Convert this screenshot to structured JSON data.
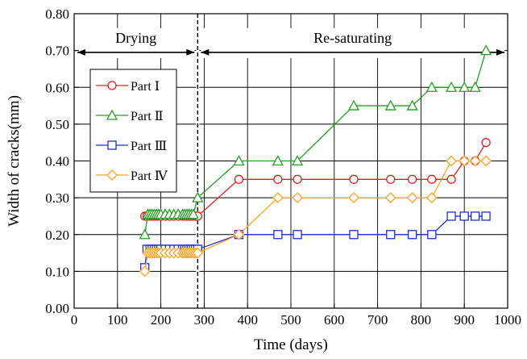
{
  "chart_data": {
    "type": "line",
    "xlabel": "Time (days)",
    "ylabel": "Width of cracks(mm)",
    "xlim": [
      0,
      1000
    ],
    "ylim": [
      0.0,
      0.8
    ],
    "x_ticks": [
      "0",
      "100",
      "200",
      "300",
      "400",
      "500",
      "600",
      "700",
      "800",
      "900",
      "1000"
    ],
    "y_ticks": [
      "0.00",
      "0.10",
      "0.20",
      "0.30",
      "0.40",
      "0.50",
      "0.60",
      "0.70",
      "0.80"
    ],
    "grid": true,
    "legend_position": "upper-left",
    "phase_divider_x": 285,
    "phases": [
      {
        "label": "Drying",
        "x_start": 0,
        "x_end": 285,
        "y": 0.695
      },
      {
        "label": "Re-saturating",
        "x_start": 285,
        "x_end": 1000,
        "y": 0.695
      }
    ],
    "series": [
      {
        "name": "Part Ⅰ",
        "color": "#e02020",
        "marker": "circle",
        "x": [
          163,
          168,
          175,
          180,
          185,
          190,
          195,
          200,
          210,
          220,
          230,
          240,
          250,
          255,
          260,
          265,
          270,
          275,
          280,
          285,
          380,
          470,
          515,
          645,
          730,
          780,
          825,
          870,
          900,
          925,
          950
        ],
        "y": [
          0.25,
          0.25,
          0.25,
          0.25,
          0.25,
          0.25,
          0.25,
          0.25,
          0.25,
          0.25,
          0.25,
          0.25,
          0.25,
          0.25,
          0.25,
          0.25,
          0.25,
          0.25,
          0.25,
          0.25,
          0.35,
          0.35,
          0.35,
          0.35,
          0.35,
          0.35,
          0.35,
          0.35,
          0.4,
          0.4,
          0.45
        ]
      },
      {
        "name": "Part Ⅱ",
        "color": "#20a020",
        "marker": "triangle",
        "x": [
          163,
          170,
          175,
          180,
          185,
          190,
          195,
          200,
          210,
          220,
          230,
          240,
          250,
          255,
          260,
          265,
          270,
          275,
          285,
          380,
          470,
          515,
          645,
          730,
          780,
          825,
          870,
          900,
          925,
          950
        ],
        "y": [
          0.2,
          0.255,
          0.255,
          0.255,
          0.255,
          0.255,
          0.255,
          0.255,
          0.255,
          0.255,
          0.255,
          0.255,
          0.255,
          0.255,
          0.255,
          0.255,
          0.255,
          0.255,
          0.3,
          0.4,
          0.4,
          0.4,
          0.55,
          0.55,
          0.55,
          0.6,
          0.6,
          0.6,
          0.6,
          0.7
        ]
      },
      {
        "name": "Part Ⅲ",
        "color": "#1f2fd0",
        "marker": "square",
        "x": [
          163,
          168,
          175,
          180,
          185,
          190,
          195,
          200,
          210,
          220,
          230,
          240,
          250,
          255,
          260,
          265,
          270,
          275,
          280,
          285,
          380,
          470,
          515,
          645,
          730,
          780,
          825,
          870,
          900,
          925,
          950
        ],
        "y": [
          0.11,
          0.16,
          0.16,
          0.16,
          0.16,
          0.16,
          0.16,
          0.16,
          0.16,
          0.16,
          0.16,
          0.16,
          0.16,
          0.16,
          0.16,
          0.16,
          0.16,
          0.16,
          0.16,
          0.16,
          0.2,
          0.2,
          0.2,
          0.2,
          0.2,
          0.2,
          0.2,
          0.25,
          0.25,
          0.25,
          0.25
        ]
      },
      {
        "name": "Part Ⅳ",
        "color": "#ffa020",
        "marker": "diamond",
        "x": [
          163,
          170,
          175,
          180,
          185,
          190,
          195,
          200,
          210,
          220,
          230,
          240,
          250,
          255,
          260,
          265,
          270,
          275,
          280,
          285,
          380,
          470,
          515,
          645,
          730,
          780,
          825,
          870,
          900,
          925,
          950
        ],
        "y": [
          0.1,
          0.15,
          0.15,
          0.15,
          0.15,
          0.15,
          0.15,
          0.15,
          0.15,
          0.15,
          0.15,
          0.15,
          0.15,
          0.15,
          0.15,
          0.15,
          0.15,
          0.15,
          0.15,
          0.15,
          0.2,
          0.3,
          0.3,
          0.3,
          0.3,
          0.3,
          0.3,
          0.4,
          0.4,
          0.4,
          0.4
        ]
      }
    ]
  }
}
